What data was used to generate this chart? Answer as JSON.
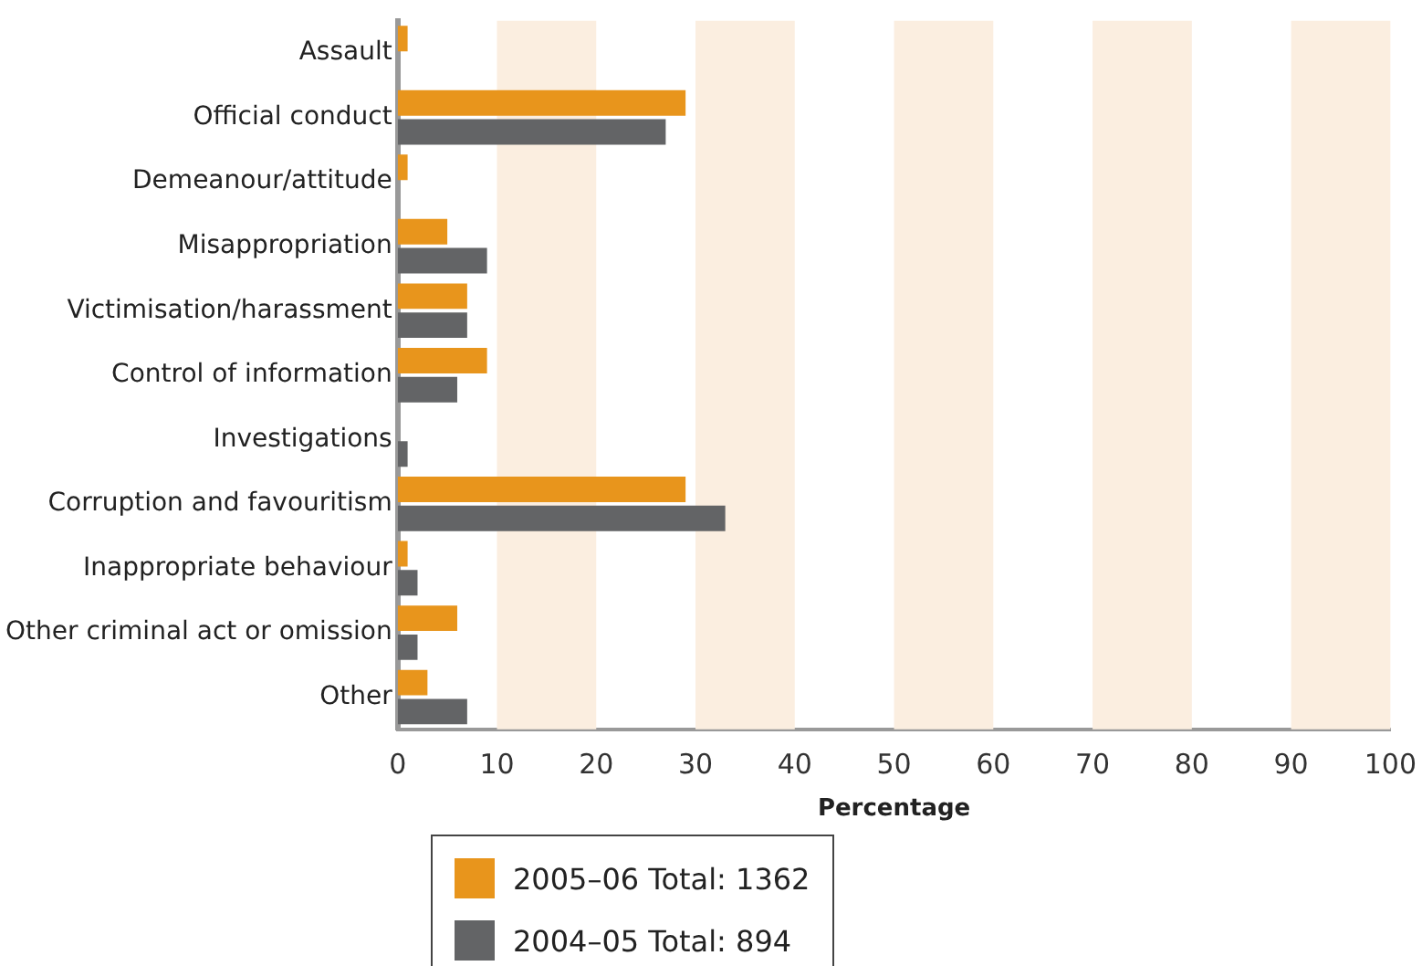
{
  "chart_data": {
    "type": "bar",
    "orientation": "horizontal",
    "xlabel": "Percentage",
    "categories": [
      "Assault",
      "Official conduct",
      "Demeanour/attitude",
      "Misappropriation",
      "Victimisation/harassment",
      "Control of information",
      "Investigations",
      "Corruption and favouritism",
      "Inappropriate behaviour",
      "Other criminal act or omission",
      "Other"
    ],
    "series": [
      {
        "name": "2005–06 Total: 1362",
        "color": "#e8951c",
        "values": [
          1,
          29,
          1,
          5,
          7,
          9,
          null,
          29,
          1,
          6,
          3
        ]
      },
      {
        "name": "2004–05 Total: 894",
        "color": "#636466",
        "values": [
          null,
          27,
          null,
          9,
          7,
          6,
          1,
          33,
          2,
          2,
          7
        ]
      }
    ],
    "xlim": [
      0,
      100
    ],
    "xticks": [
      0,
      10,
      20,
      30,
      40,
      50,
      60,
      70,
      80,
      90,
      100
    ],
    "bands": [
      {
        "axis": "x",
        "from": 10,
        "to": 20,
        "color": "#fbeee0"
      },
      {
        "axis": "x",
        "from": 30,
        "to": 40,
        "color": "#fbeee0"
      },
      {
        "axis": "x",
        "from": 50,
        "to": 60,
        "color": "#fbeee0"
      },
      {
        "axis": "x",
        "from": 70,
        "to": 80,
        "color": "#fbeee0"
      },
      {
        "axis": "x",
        "from": 90,
        "to": 100,
        "color": "#fbeee0"
      }
    ],
    "grid": false,
    "legend": "bottom"
  }
}
